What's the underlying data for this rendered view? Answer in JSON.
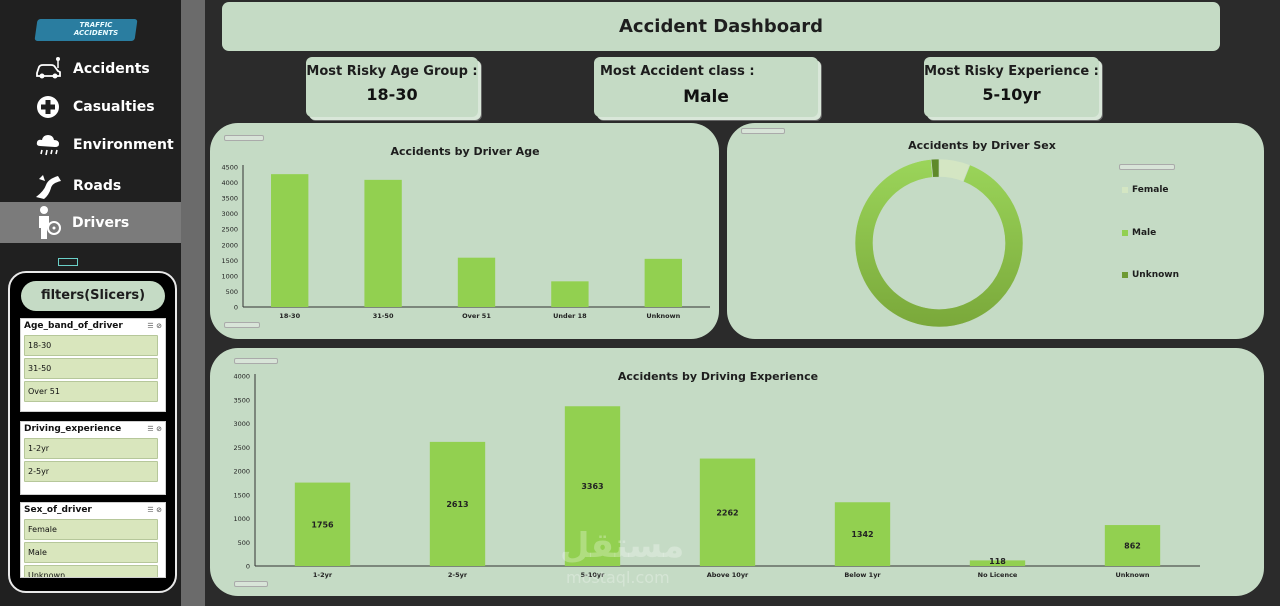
{
  "sidebar": {
    "logo": [
      "TRAFFIC",
      "ACCIDENTS"
    ],
    "items": [
      {
        "label": "Accidents",
        "icon": "car-icon"
      },
      {
        "label": "Casualties",
        "icon": "medical-cross-icon"
      },
      {
        "label": "Environment",
        "icon": "cloud-rain-icon"
      },
      {
        "label": "Roads",
        "icon": "road-icon"
      },
      {
        "label": "Drivers",
        "icon": "driver-icon",
        "active": true
      }
    ]
  },
  "slicers": {
    "title": "filters(Slicers)",
    "groups": [
      {
        "header": "Age_band_of_driver",
        "items": [
          "18-30",
          "31-50",
          "Over 51"
        ]
      },
      {
        "header": "Driving_experience",
        "items": [
          "1-2yr",
          "2-5yr"
        ]
      },
      {
        "header": "Sex_of_driver",
        "items": [
          "Female",
          "Male",
          "Unknown"
        ]
      }
    ]
  },
  "header": {
    "title": "Accident Dashboard"
  },
  "kpis": [
    {
      "label": "Most Risky Age Group :",
      "value": "18-30"
    },
    {
      "label": "Most Accident class :",
      "value": "Male"
    },
    {
      "label": "Most Risky Experience :",
      "value": "5-10yr"
    }
  ],
  "colors": {
    "bar": "#92d050",
    "panel": "#c5dbc5",
    "donut_dark": "#7aa83a",
    "donut_light": "#d4e6c3"
  },
  "chart_data": [
    {
      "type": "bar",
      "title": "Accidents by Driver Age",
      "categories": [
        "18-30",
        "31-50",
        "Over 51",
        "Under 18",
        "Unknown"
      ],
      "values": [
        4270,
        4087,
        1585,
        825,
        1548
      ],
      "ylim": [
        0,
        4500
      ],
      "yticks": [
        0,
        500,
        1000,
        1500,
        2000,
        2500,
        3000,
        3500,
        4000,
        4500
      ]
    },
    {
      "type": "pie",
      "title": "Accidents by Driver Sex",
      "categories": [
        "Female",
        "Male",
        "Unknown"
      ],
      "values": [
        6,
        92.5,
        1.5
      ],
      "legend_position": "right"
    },
    {
      "type": "bar",
      "title": "Accidents by Driving Experience",
      "categories": [
        "1-2yr",
        "2-5yr",
        "5-10yr",
        "Above 10yr",
        "Below 1yr",
        "No Licence",
        "Unknown"
      ],
      "values": [
        1756,
        2613,
        3363,
        2262,
        1342,
        118,
        862
      ],
      "data_labels": [
        "1756",
        "2613",
        "3363",
        "2262",
        "1342",
        "118",
        "862"
      ],
      "ylim": [
        0,
        4000
      ],
      "yticks": [
        0,
        500,
        1000,
        1500,
        2000,
        2500,
        3000,
        3500,
        4000
      ]
    }
  ],
  "watermark": {
    "brand": "مستقل",
    "site": "mostaql.com"
  }
}
